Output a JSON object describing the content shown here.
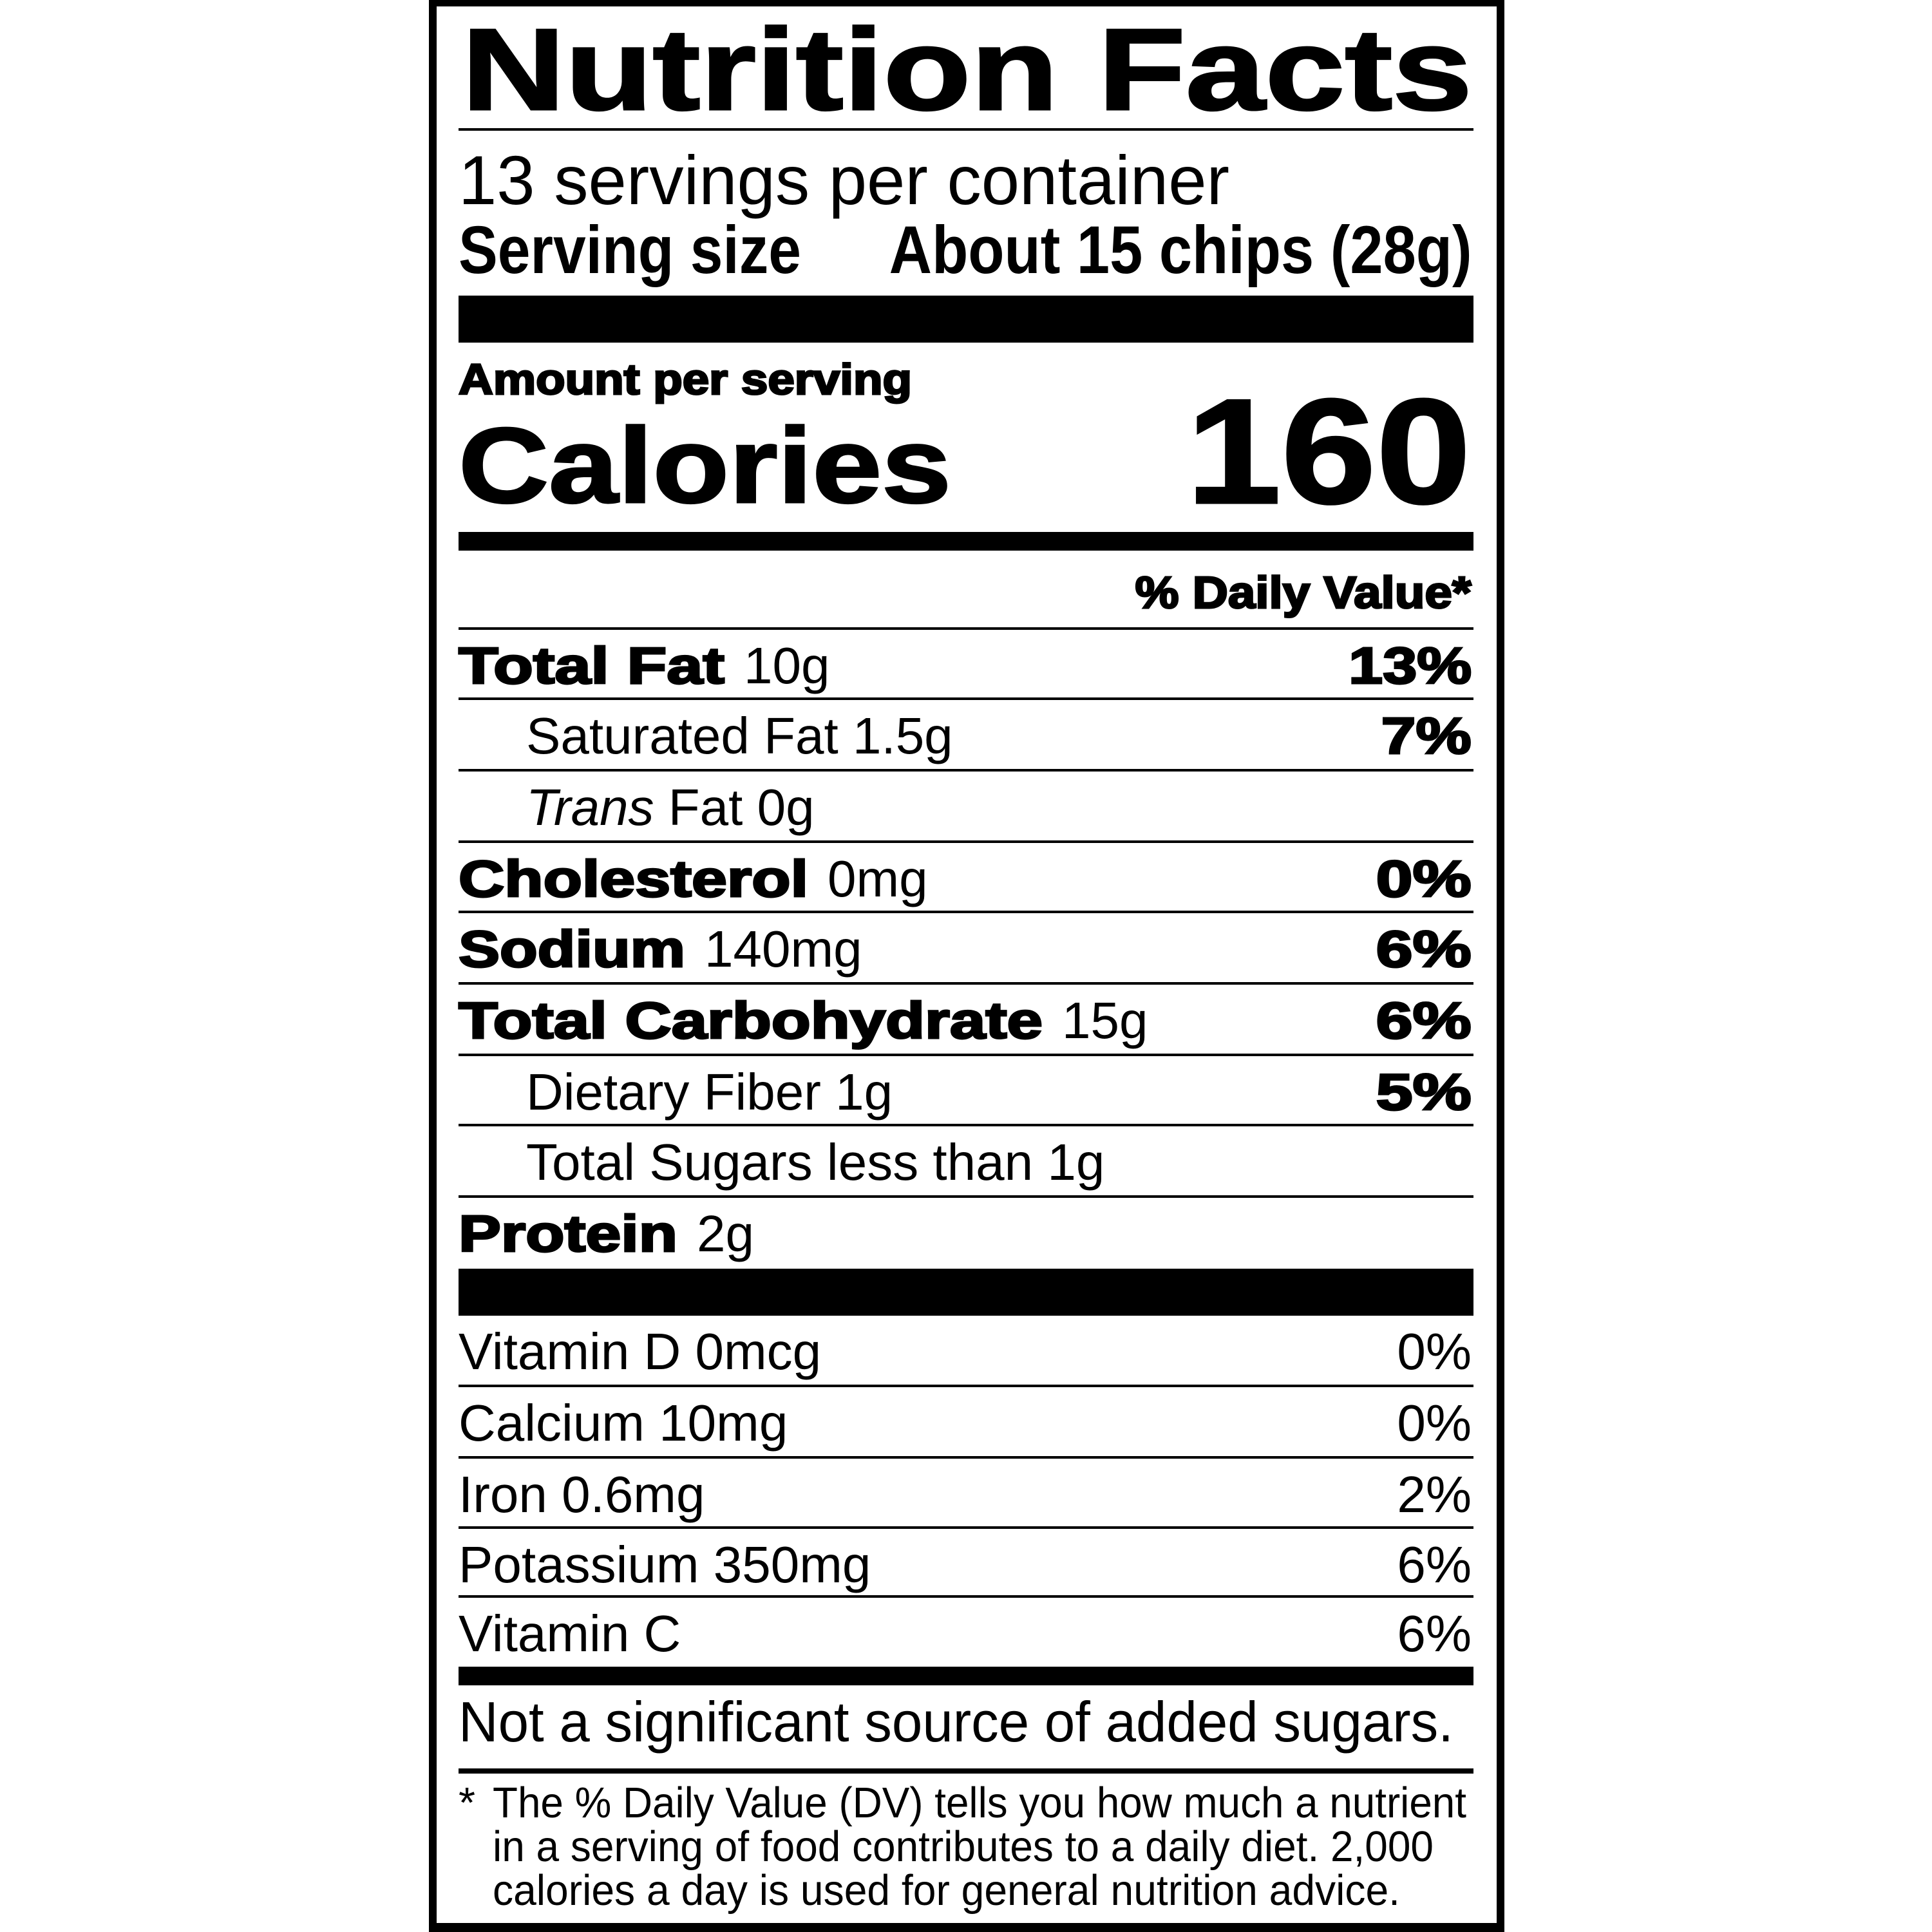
{
  "title": "Nutrition Facts",
  "servings_per_container": "13 servings per container",
  "serving_size": {
    "label": "Serving size",
    "value": "About 15 chips (28g)"
  },
  "amount_per_serving": "Amount per serving",
  "calories": {
    "label": "Calories",
    "value": "160"
  },
  "daily_value_header": "% Daily Value*",
  "nutrients": [
    {
      "name": "Total Fat",
      "amount": "10g",
      "dv": "13%"
    },
    {
      "name": "Saturated Fat",
      "amount": "1.5g",
      "dv": "7%"
    },
    {
      "name_italic": "Trans",
      "name": "Fat",
      "amount": "0g",
      "dv": ""
    },
    {
      "name": "Cholesterol",
      "amount": "0mg",
      "dv": "0%"
    },
    {
      "name": "Sodium",
      "amount": "140mg",
      "dv": "6%"
    },
    {
      "name": "Total Carbohydrate",
      "amount": "15g",
      "dv": "6%"
    },
    {
      "name": "Dietary Fiber",
      "amount": "1g",
      "dv": "5%"
    },
    {
      "name": "Total Sugars",
      "amount": "less than 1g",
      "dv": ""
    },
    {
      "name": "Protein",
      "amount": "2g",
      "dv": ""
    }
  ],
  "vitamins": [
    {
      "name": "Vitamin D",
      "amount": "0mcg",
      "dv": "0%"
    },
    {
      "name": "Calcium",
      "amount": "10mg",
      "dv": "0%"
    },
    {
      "name": "Iron",
      "amount": "0.6mg",
      "dv": "2%"
    },
    {
      "name": "Potassium",
      "amount": "350mg",
      "dv": "6%"
    },
    {
      "name": "Vitamin C",
      "amount": "",
      "dv": "6%"
    }
  ],
  "added_sugars_note": "Not a significant source of added sugars.",
  "footnote": {
    "marker": "*",
    "lines": [
      "The % Daily Value (DV) tells you how much a nutrient",
      "in a serving of food contributes to a daily diet. 2,000",
      "calories a day is used for general nutrition advice."
    ]
  }
}
